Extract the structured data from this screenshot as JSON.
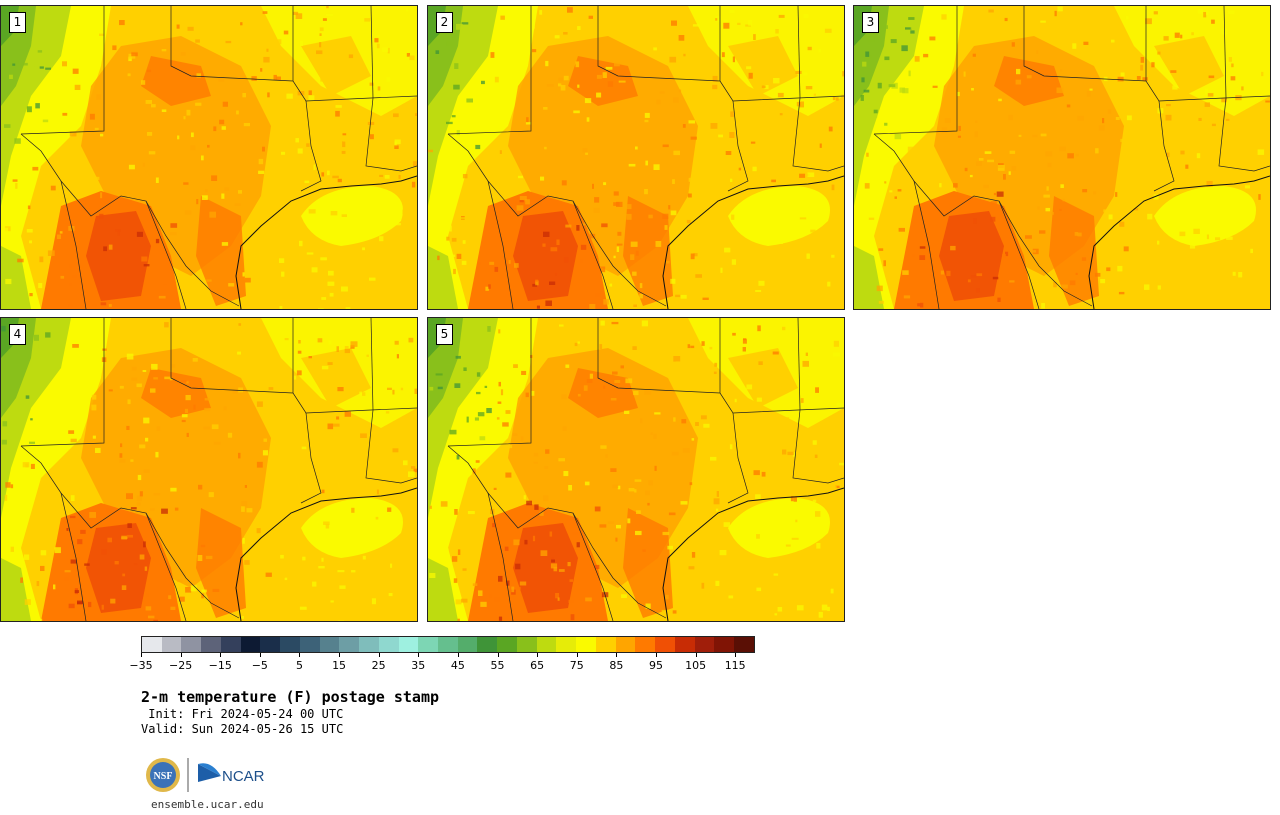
{
  "panels": [
    {
      "number": "1"
    },
    {
      "number": "2"
    },
    {
      "number": "3"
    },
    {
      "number": "4"
    },
    {
      "number": "5"
    }
  ],
  "colorbar": {
    "colors": [
      "#e6e8ec",
      "#b9bbc4",
      "#8f93a2",
      "#5d6379",
      "#34405c",
      "#0d1a33",
      "#1a2e4a",
      "#2b4a63",
      "#3d6278",
      "#56818e",
      "#6d9ea5",
      "#7fbdbb",
      "#8fd8cf",
      "#9ef0e0",
      "#7dd6b4",
      "#65bf8e",
      "#54ad6b",
      "#3f9438",
      "#5aa623",
      "#89c01b",
      "#bedb10",
      "#e6ec08",
      "#fafa00",
      "#ffd000",
      "#ffa500",
      "#ff7a00",
      "#f05005",
      "#c82c05",
      "#a01e0a",
      "#801405",
      "#5a0f05"
    ],
    "tick_labels": [
      "−35",
      "−25",
      "−15",
      "−5",
      "5",
      "15",
      "25",
      "35",
      "45",
      "55",
      "65",
      "75",
      "85",
      "95",
      "105",
      "115"
    ]
  },
  "title": "2-m temperature (F) postage stamp",
  "init_line": " Init: Fri 2024-05-24 00 UTC",
  "valid_line": "Valid: Sun 2024-05-26 15 UTC",
  "logos": {
    "nsf": "NSF",
    "ncar": "NCAR"
  },
  "site": "ensemble.ucar.edu"
}
